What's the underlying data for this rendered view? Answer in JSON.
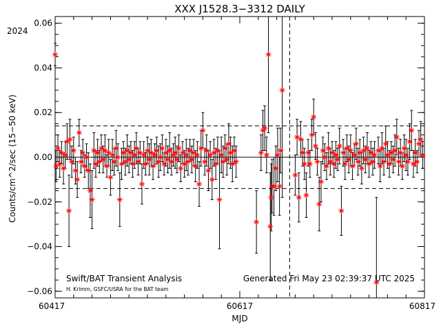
{
  "chart_data": {
    "type": "scatter",
    "title": "XXX J1528.3−3312 DAILY",
    "year_label": "2024",
    "xlabel": "MJD",
    "ylabel": "Counts/cm^2/sec (15−50 keV)",
    "xlim": [
      60417,
      60817
    ],
    "ylim": [
      -0.063,
      0.063
    ],
    "x_ticks": [
      60417,
      60617,
      60817
    ],
    "y_ticks": [
      -0.06,
      -0.04,
      -0.02,
      0.0,
      0.02,
      0.04,
      0.06
    ],
    "y_tick_labels": [
      "−0.06",
      "−0.04",
      "−0.02",
      "0.00",
      "0.02",
      "0.04",
      "0.06"
    ],
    "reference_lines": {
      "zero": 0.0,
      "upper_sigma": 0.014,
      "lower_sigma": -0.014
    },
    "vertical_marker_mjd": 60671,
    "footer_left": "Swift/BAT Transient Analysis",
    "footer_left_small": "H. Krimm, GSFC/USRA for the BAT team",
    "footer_right": "Generated Fri May 23 02:39:37 UTC 2025",
    "points": [
      {
        "x": 60417,
        "y": 0.046,
        "e": 0.005
      },
      {
        "x": 60418,
        "y": -0.004,
        "e": 0.007
      },
      {
        "x": 60420,
        "y": 0.004,
        "e": 0.006
      },
      {
        "x": 60422,
        "y": -0.003,
        "e": 0.006
      },
      {
        "x": 60424,
        "y": 0.002,
        "e": 0.005
      },
      {
        "x": 60426,
        "y": -0.005,
        "e": 0.007
      },
      {
        "x": 60428,
        "y": 0.001,
        "e": 0.006
      },
      {
        "x": 60430,
        "y": 0.007,
        "e": 0.008
      },
      {
        "x": 60432,
        "y": -0.024,
        "e": 0.016
      },
      {
        "x": 60433,
        "y": 0.008,
        "e": 0.009
      },
      {
        "x": 60435,
        "y": -0.002,
        "e": 0.007
      },
      {
        "x": 60437,
        "y": 0.003,
        "e": 0.006
      },
      {
        "x": 60439,
        "y": -0.006,
        "e": 0.006
      },
      {
        "x": 60441,
        "y": -0.01,
        "e": 0.008
      },
      {
        "x": 60443,
        "y": 0.011,
        "e": 0.006
      },
      {
        "x": 60445,
        "y": -0.002,
        "e": 0.005
      },
      {
        "x": 60447,
        "y": 0.002,
        "e": 0.006
      },
      {
        "x": 60449,
        "y": -0.004,
        "e": 0.005
      },
      {
        "x": 60451,
        "y": 0.0,
        "e": 0.006
      },
      {
        "x": 60453,
        "y": -0.006,
        "e": 0.008
      },
      {
        "x": 60455,
        "y": -0.015,
        "e": 0.012
      },
      {
        "x": 60457,
        "y": -0.019,
        "e": 0.013
      },
      {
        "x": 60459,
        "y": 0.003,
        "e": 0.008
      },
      {
        "x": 60461,
        "y": -0.003,
        "e": 0.006
      },
      {
        "x": 60463,
        "y": 0.002,
        "e": 0.006
      },
      {
        "x": 60465,
        "y": -0.002,
        "e": 0.005
      },
      {
        "x": 60467,
        "y": 0.004,
        "e": 0.006
      },
      {
        "x": 60469,
        "y": -0.001,
        "e": 0.006
      },
      {
        "x": 60471,
        "y": 0.003,
        "e": 0.007
      },
      {
        "x": 60473,
        "y": -0.004,
        "e": 0.005
      },
      {
        "x": 60475,
        "y": 0.002,
        "e": 0.006
      },
      {
        "x": 60477,
        "y": -0.009,
        "e": 0.008
      },
      {
        "x": 60479,
        "y": 0.001,
        "e": 0.007
      },
      {
        "x": 60481,
        "y": -0.002,
        "e": 0.006
      },
      {
        "x": 60483,
        "y": 0.004,
        "e": 0.008
      },
      {
        "x": 60485,
        "y": 0.0,
        "e": 0.006
      },
      {
        "x": 60487,
        "y": -0.019,
        "e": 0.012
      },
      {
        "x": 60489,
        "y": -0.003,
        "e": 0.007
      },
      {
        "x": 60491,
        "y": 0.002,
        "e": 0.005
      },
      {
        "x": 60493,
        "y": -0.002,
        "e": 0.006
      },
      {
        "x": 60495,
        "y": 0.003,
        "e": 0.007
      },
      {
        "x": 60497,
        "y": -0.001,
        "e": 0.006
      },
      {
        "x": 60499,
        "y": 0.002,
        "e": 0.005
      },
      {
        "x": 60501,
        "y": -0.003,
        "e": 0.006
      },
      {
        "x": 60503,
        "y": 0.001,
        "e": 0.006
      },
      {
        "x": 60505,
        "y": 0.004,
        "e": 0.007
      },
      {
        "x": 60507,
        "y": -0.002,
        "e": 0.006
      },
      {
        "x": 60509,
        "y": 0.002,
        "e": 0.005
      },
      {
        "x": 60511,
        "y": -0.012,
        "e": 0.009
      },
      {
        "x": 60513,
        "y": 0.001,
        "e": 0.006
      },
      {
        "x": 60515,
        "y": -0.003,
        "e": 0.005
      },
      {
        "x": 60517,
        "y": 0.003,
        "e": 0.006
      },
      {
        "x": 60519,
        "y": -0.001,
        "e": 0.007
      },
      {
        "x": 60521,
        "y": 0.002,
        "e": 0.006
      },
      {
        "x": 60523,
        "y": -0.004,
        "e": 0.006
      },
      {
        "x": 60525,
        "y": 0.001,
        "e": 0.005
      },
      {
        "x": 60527,
        "y": 0.003,
        "e": 0.006
      },
      {
        "x": 60529,
        "y": -0.002,
        "e": 0.007
      },
      {
        "x": 60531,
        "y": 0.0,
        "e": 0.006
      },
      {
        "x": 60533,
        "y": 0.004,
        "e": 0.006
      },
      {
        "x": 60535,
        "y": -0.003,
        "e": 0.005
      },
      {
        "x": 60537,
        "y": 0.002,
        "e": 0.006
      },
      {
        "x": 60539,
        "y": -0.001,
        "e": 0.006
      },
      {
        "x": 60541,
        "y": 0.003,
        "e": 0.008
      },
      {
        "x": 60543,
        "y": -0.002,
        "e": 0.006
      },
      {
        "x": 60545,
        "y": 0.001,
        "e": 0.005
      },
      {
        "x": 60547,
        "y": 0.002,
        "e": 0.007
      },
      {
        "x": 60549,
        "y": -0.001,
        "e": 0.006
      },
      {
        "x": 60551,
        "y": 0.004,
        "e": 0.006
      },
      {
        "x": 60553,
        "y": -0.005,
        "e": 0.006
      },
      {
        "x": 60555,
        "y": 0.002,
        "e": 0.005
      },
      {
        "x": 60557,
        "y": -0.003,
        "e": 0.006
      },
      {
        "x": 60559,
        "y": 0.001,
        "e": 0.007
      },
      {
        "x": 60561,
        "y": -0.002,
        "e": 0.006
      },
      {
        "x": 60563,
        "y": 0.003,
        "e": 0.005
      },
      {
        "x": 60565,
        "y": -0.001,
        "e": 0.006
      },
      {
        "x": 60567,
        "y": 0.002,
        "e": 0.006
      },
      {
        "x": 60569,
        "y": -0.004,
        "e": 0.007
      },
      {
        "x": 60571,
        "y": 0.001,
        "e": 0.006
      },
      {
        "x": 60573,
        "y": -0.012,
        "e": 0.01
      },
      {
        "x": 60575,
        "y": 0.004,
        "e": 0.008
      },
      {
        "x": 60577,
        "y": 0.012,
        "e": 0.008
      },
      {
        "x": 60579,
        "y": -0.002,
        "e": 0.006
      },
      {
        "x": 60581,
        "y": 0.003,
        "e": 0.007
      },
      {
        "x": 60583,
        "y": -0.006,
        "e": 0.009
      },
      {
        "x": 60585,
        "y": 0.001,
        "e": 0.006
      },
      {
        "x": 60587,
        "y": -0.01,
        "e": 0.009
      },
      {
        "x": 60589,
        "y": 0.002,
        "e": 0.006
      },
      {
        "x": 60591,
        "y": -0.003,
        "e": 0.007
      },
      {
        "x": 60593,
        "y": 0.003,
        "e": 0.006
      },
      {
        "x": 60595,
        "y": -0.019,
        "e": 0.022
      },
      {
        "x": 60597,
        "y": 0.001,
        "e": 0.008
      },
      {
        "x": 60599,
        "y": -0.002,
        "e": 0.007
      },
      {
        "x": 60601,
        "y": 0.004,
        "e": 0.006
      },
      {
        "x": 60603,
        "y": -0.001,
        "e": 0.007
      },
      {
        "x": 60605,
        "y": 0.006,
        "e": 0.009
      },
      {
        "x": 60607,
        "y": 0.002,
        "e": 0.007
      },
      {
        "x": 60609,
        "y": -0.003,
        "e": 0.008
      },
      {
        "x": 60611,
        "y": 0.003,
        "e": 0.006
      },
      {
        "x": 60613,
        "y": -0.002,
        "e": 0.007
      },
      {
        "x": 60635,
        "y": -0.029,
        "e": 0.014
      },
      {
        "x": 60640,
        "y": 0.002,
        "e": 0.008
      },
      {
        "x": 60642,
        "y": 0.012,
        "e": 0.009
      },
      {
        "x": 60644,
        "y": 0.013,
        "e": 0.01
      },
      {
        "x": 60646,
        "y": 0.001,
        "e": 0.008
      },
      {
        "x": 60648,
        "y": 0.046,
        "e": 0.035
      },
      {
        "x": 60650,
        "y": -0.031,
        "e": 0.024
      },
      {
        "x": 60651,
        "y": -0.018,
        "e": 0.015
      },
      {
        "x": 60652,
        "y": -0.013,
        "e": 0.012
      },
      {
        "x": 60654,
        "y": -0.013,
        "e": 0.013
      },
      {
        "x": 60656,
        "y": -0.005,
        "e": 0.01
      },
      {
        "x": 60658,
        "y": 0.001,
        "e": 0.012
      },
      {
        "x": 60660,
        "y": -0.013,
        "e": 0.013
      },
      {
        "x": 60661,
        "y": 0.003,
        "e": 0.01
      },
      {
        "x": 60663,
        "y": 0.03,
        "e": 0.048
      },
      {
        "x": 60677,
        "y": -0.008,
        "e": 0.009
      },
      {
        "x": 60679,
        "y": 0.009,
        "e": 0.008
      },
      {
        "x": 60681,
        "y": -0.018,
        "e": 0.011
      },
      {
        "x": 60683,
        "y": 0.008,
        "e": 0.008
      },
      {
        "x": 60685,
        "y": 0.002,
        "e": 0.006
      },
      {
        "x": 60687,
        "y": -0.003,
        "e": 0.007
      },
      {
        "x": 60689,
        "y": -0.017,
        "e": 0.01
      },
      {
        "x": 60691,
        "y": 0.002,
        "e": 0.006
      },
      {
        "x": 60693,
        "y": -0.003,
        "e": 0.006
      },
      {
        "x": 60695,
        "y": 0.01,
        "e": 0.007
      },
      {
        "x": 60697,
        "y": 0.018,
        "e": 0.008
      },
      {
        "x": 60699,
        "y": 0.005,
        "e": 0.006
      },
      {
        "x": 60701,
        "y": -0.002,
        "e": 0.006
      },
      {
        "x": 60703,
        "y": -0.021,
        "e": 0.012
      },
      {
        "x": 60705,
        "y": -0.011,
        "e": 0.009
      },
      {
        "x": 60707,
        "y": 0.003,
        "e": 0.006
      },
      {
        "x": 60709,
        "y": 0.0,
        "e": 0.006
      },
      {
        "x": 60711,
        "y": -0.004,
        "e": 0.006
      },
      {
        "x": 60713,
        "y": 0.004,
        "e": 0.007
      },
      {
        "x": 60715,
        "y": -0.002,
        "e": 0.006
      },
      {
        "x": 60717,
        "y": 0.002,
        "e": 0.005
      },
      {
        "x": 60719,
        "y": -0.003,
        "e": 0.006
      },
      {
        "x": 60721,
        "y": 0.001,
        "e": 0.006
      },
      {
        "x": 60723,
        "y": -0.001,
        "e": 0.005
      },
      {
        "x": 60725,
        "y": 0.005,
        "e": 0.008
      },
      {
        "x": 60727,
        "y": -0.024,
        "e": 0.011
      },
      {
        "x": 60729,
        "y": 0.002,
        "e": 0.006
      },
      {
        "x": 60731,
        "y": -0.003,
        "e": 0.007
      },
      {
        "x": 60733,
        "y": 0.004,
        "e": 0.006
      },
      {
        "x": 60735,
        "y": -0.001,
        "e": 0.006
      },
      {
        "x": 60737,
        "y": 0.003,
        "e": 0.007
      },
      {
        "x": 60739,
        "y": -0.004,
        "e": 0.006
      },
      {
        "x": 60741,
        "y": 0.001,
        "e": 0.005
      },
      {
        "x": 60743,
        "y": 0.006,
        "e": 0.007
      },
      {
        "x": 60745,
        "y": -0.002,
        "e": 0.006
      },
      {
        "x": 60747,
        "y": 0.002,
        "e": 0.006
      },
      {
        "x": 60749,
        "y": -0.005,
        "e": 0.007
      },
      {
        "x": 60751,
        "y": 0.003,
        "e": 0.006
      },
      {
        "x": 60753,
        "y": -0.001,
        "e": 0.006
      },
      {
        "x": 60755,
        "y": 0.004,
        "e": 0.007
      },
      {
        "x": 60757,
        "y": -0.003,
        "e": 0.006
      },
      {
        "x": 60759,
        "y": 0.002,
        "e": 0.005
      },
      {
        "x": 60761,
        "y": -0.002,
        "e": 0.006
      },
      {
        "x": 60763,
        "y": 0.001,
        "e": 0.006
      },
      {
        "x": 60765,
        "y": -0.056,
        "e": 0.038
      },
      {
        "x": 60767,
        "y": 0.003,
        "e": 0.006
      },
      {
        "x": 60769,
        "y": -0.004,
        "e": 0.007
      },
      {
        "x": 60771,
        "y": 0.004,
        "e": 0.007
      },
      {
        "x": 60773,
        "y": -0.002,
        "e": 0.006
      },
      {
        "x": 60775,
        "y": 0.006,
        "e": 0.008
      },
      {
        "x": 60777,
        "y": 0.001,
        "e": 0.006
      },
      {
        "x": 60779,
        "y": -0.003,
        "e": 0.006
      },
      {
        "x": 60781,
        "y": 0.002,
        "e": 0.005
      },
      {
        "x": 60783,
        "y": -0.001,
        "e": 0.006
      },
      {
        "x": 60785,
        "y": 0.003,
        "e": 0.007
      },
      {
        "x": 60787,
        "y": 0.009,
        "e": 0.008
      },
      {
        "x": 60789,
        "y": -0.002,
        "e": 0.006
      },
      {
        "x": 60791,
        "y": 0.002,
        "e": 0.006
      },
      {
        "x": 60793,
        "y": -0.004,
        "e": 0.006
      },
      {
        "x": 60795,
        "y": 0.004,
        "e": 0.006
      },
      {
        "x": 60797,
        "y": 0.001,
        "e": 0.007
      },
      {
        "x": 60799,
        "y": -0.002,
        "e": 0.006
      },
      {
        "x": 60801,
        "y": 0.007,
        "e": 0.008
      },
      {
        "x": 60803,
        "y": 0.012,
        "e": 0.009
      },
      {
        "x": 60805,
        "y": -0.003,
        "e": 0.006
      },
      {
        "x": 60807,
        "y": 0.002,
        "e": 0.006
      },
      {
        "x": 60809,
        "y": -0.002,
        "e": 0.005
      },
      {
        "x": 60811,
        "y": 0.006,
        "e": 0.006
      },
      {
        "x": 60813,
        "y": 0.008,
        "e": 0.008
      },
      {
        "x": 60815,
        "y": 0.001,
        "e": 0.006
      }
    ]
  },
  "colors": {
    "marker": "#ff0000",
    "axis": "#000000",
    "background": "#ffffff"
  }
}
